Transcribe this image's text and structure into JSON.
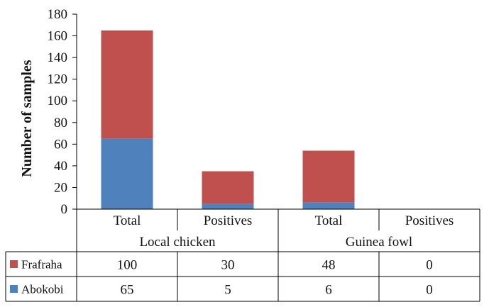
{
  "chart_data": {
    "type": "bar",
    "stacked": true,
    "title": "",
    "xlabel": "",
    "ylabel": "Number of samples",
    "ylim": [
      0,
      180
    ],
    "yticks": [
      0,
      20,
      40,
      60,
      80,
      100,
      120,
      140,
      160,
      180
    ],
    "groups": [
      {
        "label": "Local chicken",
        "categories": [
          "Total",
          "Positives"
        ]
      },
      {
        "label": "Guinea fowl",
        "categories": [
          "Total",
          "Positives"
        ]
      }
    ],
    "categories": [
      "Total",
      "Positives",
      "Total",
      "Positives"
    ],
    "series": [
      {
        "name": "Abokobi",
        "color": "#4f81bd",
        "values": [
          65,
          5,
          6,
          0
        ]
      },
      {
        "name": "Frafraha",
        "color": "#c0504d",
        "values": [
          100,
          30,
          48,
          0
        ]
      }
    ],
    "data_table": {
      "rows": [
        {
          "name": "Frafraha",
          "values": [
            "100",
            "30",
            "48",
            "0"
          ]
        },
        {
          "name": "Abokobi",
          "values": [
            "65",
            "5",
            "6",
            "0"
          ]
        }
      ]
    }
  }
}
